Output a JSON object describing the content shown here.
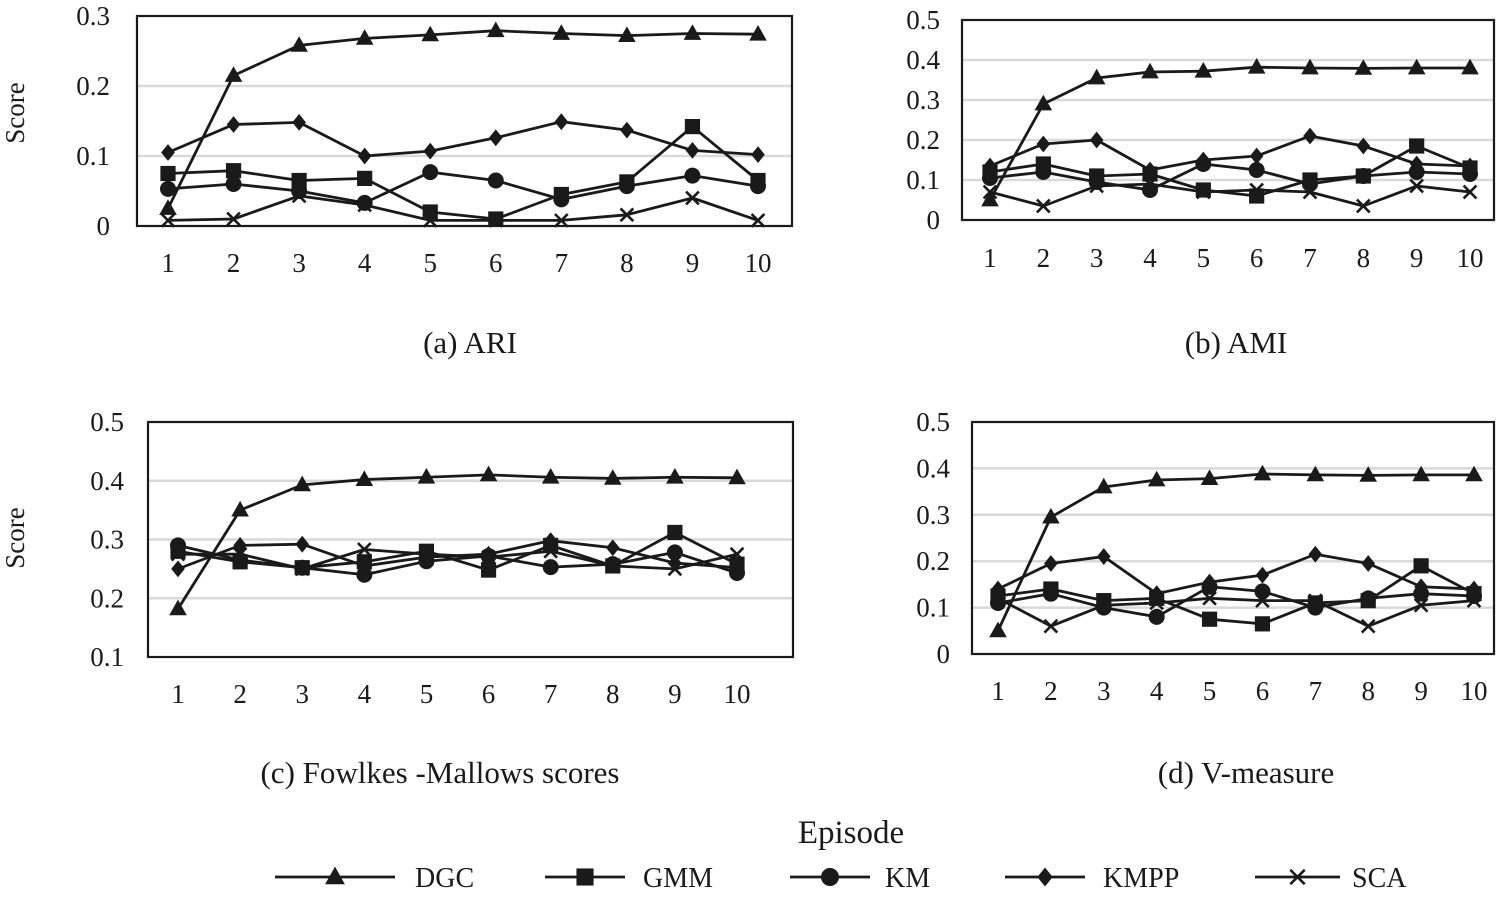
{
  "x_axis_title": "Episode",
  "series_styles": [
    {
      "name": "DGC",
      "marker": "triangle"
    },
    {
      "name": "GMM",
      "marker": "square"
    },
    {
      "name": "KM",
      "marker": "circle"
    },
    {
      "name": "KMPP",
      "marker": "diamond"
    },
    {
      "name": "SCA",
      "marker": "cross"
    }
  ],
  "legend": [
    "DGC",
    "GMM",
    "KM",
    "KMPP",
    "SCA"
  ],
  "chart_data": [
    {
      "type": "line",
      "caption": "(a) ARI",
      "ylabel": "Score",
      "xlabel": "Episode",
      "categories": [
        "1",
        "2",
        "3",
        "4",
        "5",
        "6",
        "7",
        "8",
        "9",
        "10"
      ],
      "ylim": [
        0,
        0.3
      ],
      "yticks": [
        0,
        0.1,
        0.2,
        0.3
      ],
      "ytick_labels": [
        "0",
        "0.1",
        "0.2",
        "0.3"
      ],
      "grid": true,
      "series": [
        {
          "name": "DGC",
          "values": [
            0.025,
            0.215,
            0.258,
            0.268,
            0.273,
            0.279,
            0.275,
            0.272,
            0.275,
            0.274
          ]
        },
        {
          "name": "GMM",
          "values": [
            0.075,
            0.079,
            0.065,
            0.068,
            0.02,
            0.01,
            0.045,
            0.063,
            0.142,
            0.065
          ]
        },
        {
          "name": "KM",
          "values": [
            0.053,
            0.06,
            0.05,
            0.033,
            0.077,
            0.065,
            0.038,
            0.057,
            0.072,
            0.057
          ]
        },
        {
          "name": "KMPP",
          "values": [
            0.105,
            0.145,
            0.148,
            0.1,
            0.107,
            0.126,
            0.149,
            0.137,
            0.108,
            0.102
          ]
        },
        {
          "name": "SCA",
          "values": [
            0.008,
            0.01,
            0.043,
            0.03,
            0.008,
            0.008,
            0.008,
            0.016,
            0.04,
            0.008
          ]
        }
      ]
    },
    {
      "type": "line",
      "caption": "(b) AMI",
      "ylabel": "",
      "xlabel": "Episode",
      "categories": [
        "1",
        "2",
        "3",
        "4",
        "5",
        "6",
        "7",
        "8",
        "9",
        "10"
      ],
      "ylim": [
        0,
        0.5
      ],
      "yticks": [
        0,
        0.1,
        0.2,
        0.3,
        0.4,
        0.5
      ],
      "ytick_labels": [
        "0",
        "0.1",
        "0.2",
        "0.3",
        "0.4",
        "0.5"
      ],
      "grid": true,
      "series": [
        {
          "name": "DGC",
          "values": [
            0.05,
            0.29,
            0.355,
            0.37,
            0.372,
            0.382,
            0.38,
            0.379,
            0.38,
            0.38
          ]
        },
        {
          "name": "GMM",
          "values": [
            0.12,
            0.14,
            0.11,
            0.115,
            0.075,
            0.06,
            0.1,
            0.11,
            0.185,
            0.13
          ]
        },
        {
          "name": "KM",
          "values": [
            0.105,
            0.12,
            0.095,
            0.075,
            0.14,
            0.125,
            0.09,
            0.11,
            0.12,
            0.115
          ]
        },
        {
          "name": "KMPP",
          "values": [
            0.135,
            0.19,
            0.2,
            0.125,
            0.15,
            0.16,
            0.21,
            0.185,
            0.14,
            0.135
          ]
        },
        {
          "name": "SCA",
          "values": [
            0.07,
            0.035,
            0.085,
            0.09,
            0.07,
            0.075,
            0.07,
            0.035,
            0.085,
            0.07
          ]
        }
      ]
    },
    {
      "type": "line",
      "caption": "(c) Fowlkes -Mallows scores",
      "ylabel": "Score",
      "xlabel": "Episode",
      "categories": [
        "1",
        "2",
        "3",
        "4",
        "5",
        "6",
        "7",
        "8",
        "9",
        "10"
      ],
      "ylim": [
        0.1,
        0.5
      ],
      "yticks": [
        0.1,
        0.2,
        0.3,
        0.4,
        0.5
      ],
      "ytick_labels": [
        "0.1",
        "0.2",
        "0.3",
        "0.4",
        "0.5"
      ],
      "grid": true,
      "series": [
        {
          "name": "DGC",
          "values": [
            0.182,
            0.35,
            0.393,
            0.402,
            0.406,
            0.41,
            0.406,
            0.404,
            0.406,
            0.405
          ]
        },
        {
          "name": "GMM",
          "values": [
            0.28,
            0.262,
            0.252,
            0.262,
            0.28,
            0.248,
            0.29,
            0.255,
            0.312,
            0.258
          ]
        },
        {
          "name": "KM",
          "values": [
            0.29,
            0.265,
            0.252,
            0.24,
            0.263,
            0.272,
            0.253,
            0.258,
            0.278,
            0.243
          ]
        },
        {
          "name": "KMPP",
          "values": [
            0.25,
            0.29,
            0.292,
            0.255,
            0.27,
            0.275,
            0.298,
            0.286,
            0.26,
            0.252
          ]
        },
        {
          "name": "SCA",
          "values": [
            0.275,
            0.275,
            0.25,
            0.283,
            0.275,
            0.27,
            0.28,
            0.255,
            0.25,
            0.275
          ]
        }
      ]
    },
    {
      "type": "line",
      "caption": "(d) V-measure",
      "ylabel": "",
      "xlabel": "Episode",
      "categories": [
        "1",
        "2",
        "3",
        "4",
        "5",
        "6",
        "7",
        "8",
        "9",
        "10"
      ],
      "ylim": [
        0,
        0.5
      ],
      "yticks": [
        0,
        0.1,
        0.2,
        0.3,
        0.4,
        0.5
      ],
      "ytick_labels": [
        "0",
        "0.1",
        "0.2",
        "0.3",
        "0.4",
        "0.5"
      ],
      "grid": true,
      "series": [
        {
          "name": "DGC",
          "values": [
            0.05,
            0.295,
            0.36,
            0.375,
            0.378,
            0.388,
            0.386,
            0.385,
            0.386,
            0.386
          ]
        },
        {
          "name": "GMM",
          "values": [
            0.125,
            0.14,
            0.115,
            0.12,
            0.075,
            0.065,
            0.11,
            0.115,
            0.19,
            0.13
          ]
        },
        {
          "name": "KM",
          "values": [
            0.11,
            0.13,
            0.1,
            0.08,
            0.145,
            0.135,
            0.1,
            0.12,
            0.13,
            0.125
          ]
        },
        {
          "name": "KMPP",
          "values": [
            0.14,
            0.195,
            0.21,
            0.13,
            0.155,
            0.17,
            0.215,
            0.195,
            0.145,
            0.14
          ]
        },
        {
          "name": "SCA",
          "values": [
            0.12,
            0.06,
            0.105,
            0.11,
            0.12,
            0.115,
            0.115,
            0.06,
            0.105,
            0.115
          ]
        }
      ]
    }
  ]
}
